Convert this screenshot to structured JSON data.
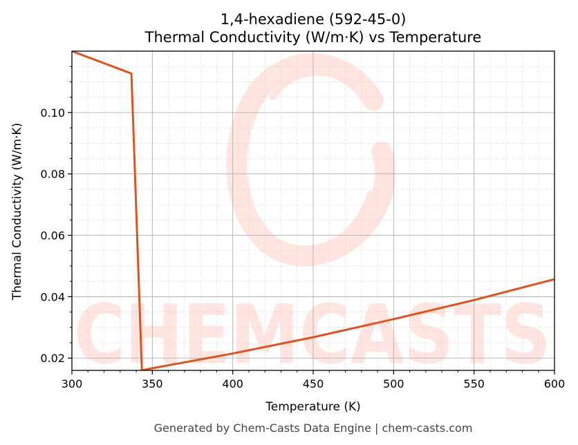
{
  "chart_data": {
    "type": "line",
    "title": "1,4-hexadiene (592-45-0)",
    "subtitle": "Thermal Conductivity (W/m·K) vs Temperature",
    "xlabel": "Temperature (K)",
    "ylabel": "Thermal Conductivity (W/m·K)",
    "xlim": [
      300,
      600
    ],
    "ylim": [
      0.016,
      0.12
    ],
    "xticks": [
      300,
      350,
      400,
      450,
      500,
      550,
      600
    ],
    "xtick_labels": [
      "300",
      "350",
      "400",
      "450",
      "500",
      "550",
      "600"
    ],
    "yticks": [
      0.02,
      0.04,
      0.06,
      0.08,
      0.1
    ],
    "ytick_labels": [
      "0.02",
      "0.04",
      "0.06",
      "0.08",
      "0.10"
    ],
    "grid": true,
    "series": [
      {
        "color": "#d9541e",
        "x": [
          300,
          337,
          343.5,
          350,
          400,
          450,
          500,
          550,
          600
        ],
        "y": [
          0.12,
          0.1127,
          0.016,
          0.0167,
          0.0215,
          0.0268,
          0.0327,
          0.0389,
          0.0457
        ]
      }
    ]
  },
  "watermark": {
    "text": "CHEMCASTS",
    "color": "#ff6d55"
  },
  "footer": "Generated by Chem-Casts Data Engine | chem-casts.com"
}
